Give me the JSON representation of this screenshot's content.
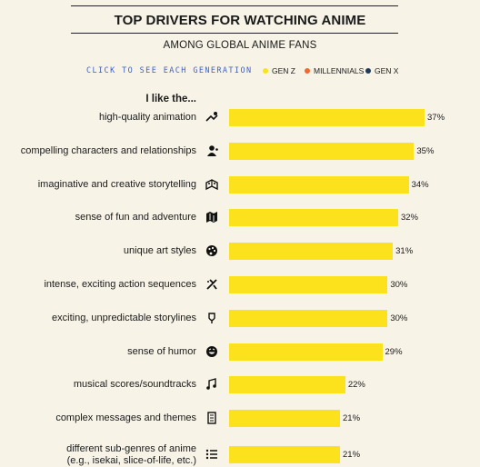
{
  "title": "TOP DRIVERS FOR WATCHING ANIME",
  "subtitle": "AMONG GLOBAL ANIME FANS",
  "legend": {
    "prompt": "CLICK TO SEE EACH GENERATION",
    "items": [
      {
        "label": "GEN Z",
        "color": "#fbe21d"
      },
      {
        "label": "MILLENNIALS",
        "color": "#ee6a2f"
      },
      {
        "label": "GEN X",
        "color": "#203a5a"
      }
    ]
  },
  "header_label": "I like the...",
  "chart_data": {
    "type": "bar",
    "orientation": "horizontal",
    "categories": [
      "high-quality animation",
      "compelling characters and relationships",
      "imaginative and creative storytelling",
      "sense of fun and adventure",
      "unique art styles",
      "intense, exciting action sequences",
      "exciting, unpredictable storylines",
      "sense of humor",
      "musical scores/soundtracks",
      "complex messages and themes",
      "different sub-genres of anime (e.g., isekai, slice-of-life, etc.)"
    ],
    "category_lines": [
      [
        "high-quality animation"
      ],
      [
        "compelling characters and relationships"
      ],
      [
        "imaginative and creative storytelling"
      ],
      [
        "sense of fun and adventure"
      ],
      [
        "unique art styles"
      ],
      [
        "intense, exciting action sequences"
      ],
      [
        "exciting, unpredictable storylines"
      ],
      [
        "sense of humor"
      ],
      [
        "musical scores/soundtracks"
      ],
      [
        "complex messages and themes"
      ],
      [
        "different sub-genres of anime",
        "(e.g., isekai, slice-of-life, etc.)"
      ]
    ],
    "icons": [
      "animation-icon",
      "characters-icon",
      "storytelling-icon",
      "map-icon",
      "palette-icon",
      "action-icon",
      "twist-icon",
      "laugh-icon",
      "music-icon",
      "scroll-icon",
      "list-icon"
    ],
    "series": [
      {
        "name": "GEN Z",
        "color": "#fbe21d",
        "values": [
          37,
          35,
          34,
          32,
          31,
          30,
          30,
          29,
          22,
          21,
          21
        ]
      }
    ],
    "value_labels": [
      "37%",
      "35%",
      "34%",
      "32%",
      "31%",
      "30%",
      "30%",
      "29%",
      "22%",
      "21%",
      "21%"
    ],
    "value_suffix": "%",
    "grid": false
  }
}
